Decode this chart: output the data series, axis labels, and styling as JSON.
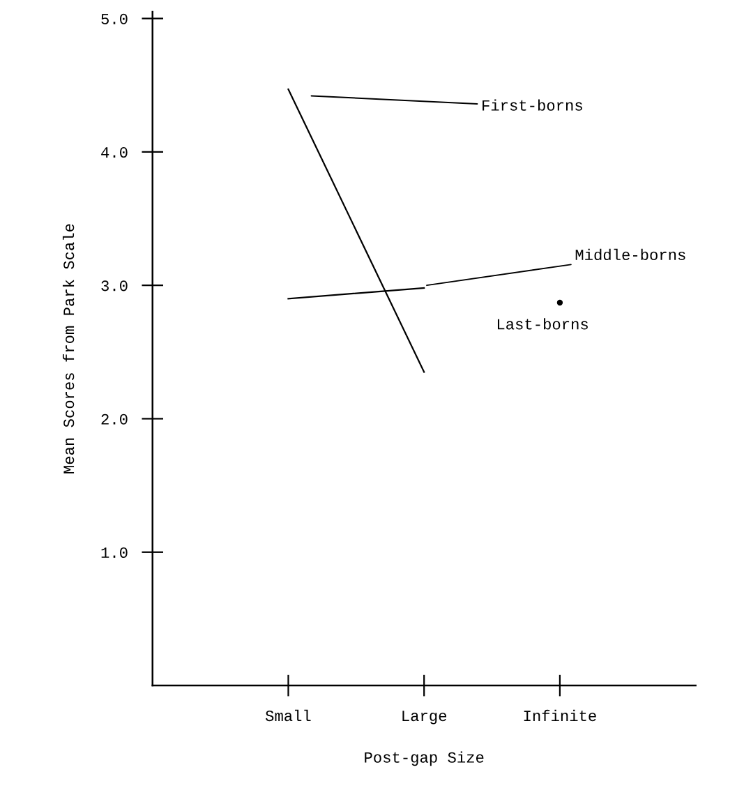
{
  "chart_data": {
    "type": "line",
    "xlabel": "Post-gap Size",
    "ylabel": "Mean Scores from Park Scale",
    "categories": [
      "Small",
      "Large",
      "Infinite"
    ],
    "series": [
      {
        "name": "First-borns",
        "color": "#000000",
        "values": [
          4.47,
          2.35,
          null
        ]
      },
      {
        "name": "Middle-borns",
        "color": "#000000",
        "values": [
          2.9,
          2.98,
          null
        ]
      },
      {
        "name": "Last-borns",
        "color": "#000000",
        "type": "scatter",
        "marker": "circle",
        "values": [
          null,
          null,
          2.87
        ]
      }
    ],
    "ylim": [
      0,
      5.05
    ],
    "yticks": [
      {
        "value": 1,
        "label": "1.0"
      },
      {
        "value": 2,
        "label": "2.0"
      },
      {
        "value": 3,
        "label": "3.0"
      },
      {
        "value": 4,
        "label": "4.0"
      },
      {
        "value": 5,
        "label": "5.0"
      }
    ],
    "grid": false,
    "legend": false
  }
}
